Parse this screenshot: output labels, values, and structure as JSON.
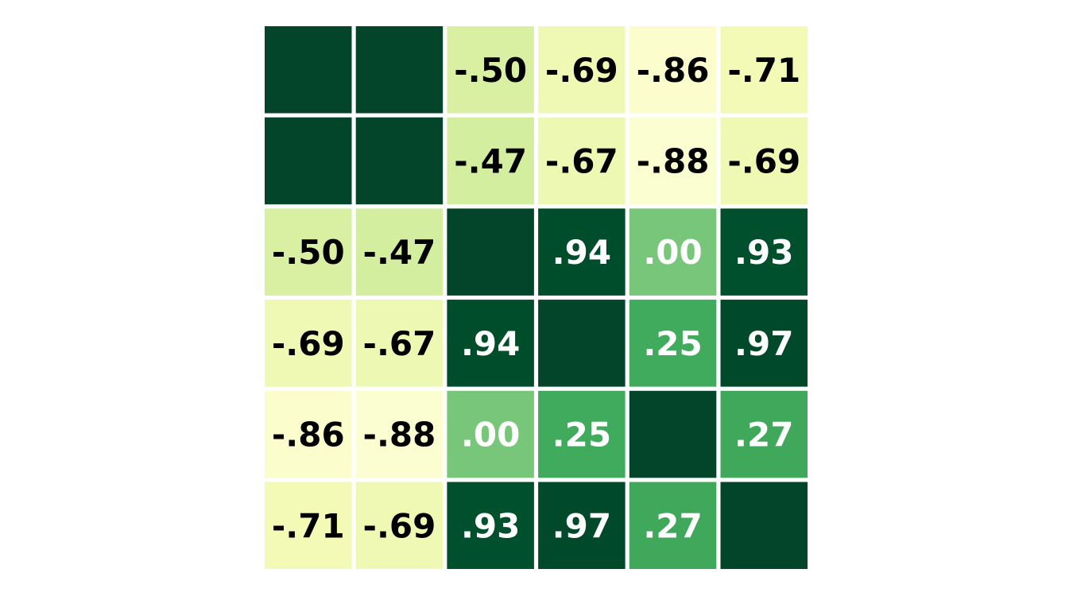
{
  "chart_data": {
    "type": "heatmap",
    "title": "",
    "xlabel": "",
    "ylabel": "",
    "rows": 6,
    "cols": 6,
    "values": [
      [
        null,
        null,
        -0.5,
        -0.69,
        -0.86,
        -0.71
      ],
      [
        null,
        null,
        -0.47,
        -0.67,
        -0.88,
        -0.69
      ],
      [
        -0.5,
        -0.47,
        null,
        0.94,
        0.0,
        0.93
      ],
      [
        -0.69,
        -0.67,
        0.94,
        null,
        0.25,
        0.97
      ],
      [
        -0.86,
        -0.88,
        0.0,
        0.25,
        null,
        0.27
      ],
      [
        -0.71,
        -0.69,
        0.93,
        0.97,
        0.27,
        null
      ]
    ],
    "labels": [
      [
        "",
        "",
        "-.50",
        "-.69",
        "-.86",
        "-.71"
      ],
      [
        "",
        "",
        "-.47",
        "-.67",
        "-.88",
        "-.69"
      ],
      [
        "-.50",
        "-.47",
        "",
        ".94",
        ".00",
        ".93"
      ],
      [
        "-.69",
        "-.67",
        ".94",
        "",
        ".25",
        ".97"
      ],
      [
        "-.86",
        "-.88",
        ".00",
        ".25",
        "",
        ".27"
      ],
      [
        "-.71",
        "-.69",
        ".93",
        ".97",
        ".27",
        ""
      ]
    ],
    "color_scale": {
      "name": "YlGn",
      "vmin": -1,
      "vmax": 1,
      "stops": [
        "#ffffe5",
        "#f7fcb9",
        "#d9f0a3",
        "#addd8e",
        "#78c679",
        "#41ab5d",
        "#238443",
        "#006837",
        "#004529"
      ]
    },
    "diagonal_color": "#03452a",
    "text_color_dark": "#000000",
    "text_color_light": "#ffffff",
    "grid": false,
    "legend": "none"
  }
}
